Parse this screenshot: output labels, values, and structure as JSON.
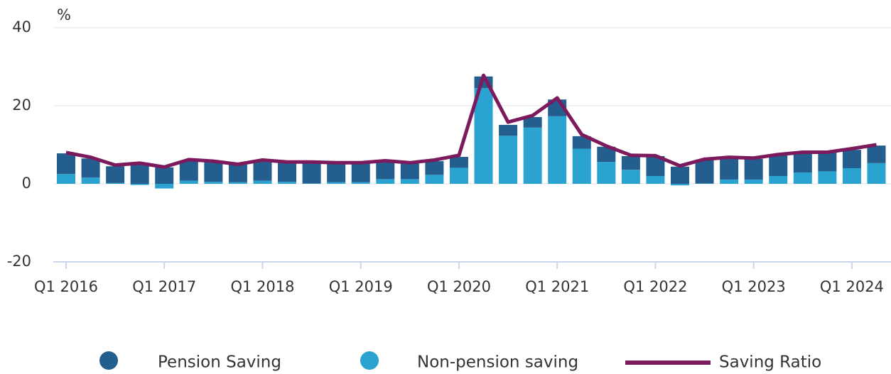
{
  "chart_data": {
    "type": "bar",
    "stacked": true,
    "y_axis_label": "%",
    "categories": [
      "Q1 2016",
      null,
      null,
      null,
      "Q1 2017",
      null,
      null,
      null,
      "Q1 2018",
      null,
      null,
      null,
      "Q1 2019",
      null,
      null,
      null,
      "Q1 2020",
      null,
      null,
      null,
      "Q1 2021",
      null,
      null,
      null,
      "Q1 2022",
      null,
      null,
      null,
      "Q1 2023",
      null,
      null,
      null,
      "Q1 2024",
      null
    ],
    "series": [
      {
        "name": "Pension Saving",
        "type": "bar",
        "color": "#235e8f",
        "values": [
          5.3,
          4.9,
          4.3,
          4.9,
          4.2,
          5.2,
          5.1,
          4.5,
          5.2,
          5.0,
          5.4,
          4.9,
          4.9,
          4.5,
          4.1,
          3.5,
          2.8,
          3.0,
          2.8,
          2.7,
          4.3,
          3.2,
          3.9,
          3.5,
          5.1,
          4.4,
          6.1,
          5.6,
          5.3,
          5.5,
          5.1,
          5.0,
          4.7,
          4.5
        ]
      },
      {
        "name": "Non-pension saving",
        "type": "bar",
        "color": "#2ba3d1",
        "values": [
          2.5,
          1.6,
          0.2,
          -0.3,
          -1.2,
          0.8,
          0.5,
          0.4,
          0.8,
          0.5,
          0.1,
          0.4,
          0.4,
          1.2,
          1.2,
          2.3,
          4.1,
          24.5,
          12.3,
          14.4,
          17.3,
          9.0,
          5.6,
          3.6,
          2.0,
          -0.4,
          0.1,
          1.1,
          1.1,
          2.0,
          2.9,
          3.2,
          4.0,
          5.3
        ]
      },
      {
        "name": "Saving Ratio",
        "type": "line",
        "color": "#7b1a5c",
        "values": [
          8.0,
          6.8,
          4.8,
          5.3,
          4.3,
          6.2,
          5.8,
          5.0,
          6.1,
          5.6,
          5.6,
          5.4,
          5.4,
          5.9,
          5.4,
          6.1,
          7.3,
          27.8,
          15.8,
          17.5,
          22.0,
          12.6,
          9.7,
          7.3,
          7.2,
          4.6,
          6.3,
          6.8,
          6.6,
          7.5,
          8.1,
          8.1,
          9.0,
          10.0
        ]
      }
    ],
    "ylim": [
      -20,
      40
    ],
    "yticks": [
      -20,
      0,
      20,
      40
    ],
    "grid": true,
    "legend": "bottom"
  }
}
